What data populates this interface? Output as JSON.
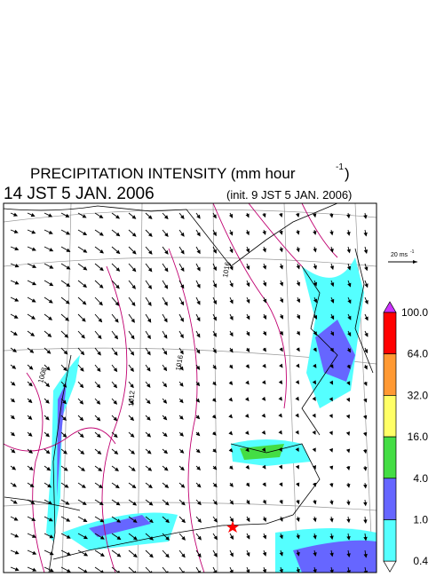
{
  "header": {
    "title": "PRECIPITATION INTENSITY (mm hour",
    "title_unit_exponent": "-1",
    "title_close": ")",
    "valid_time": "14 JST 5 JAN. 2006",
    "init_time": "(init. 9 JST 5 JAN. 2006)"
  },
  "wind_scale": {
    "label": "20 ms",
    "exponent": "-1"
  },
  "isobars": [
    {
      "label": "1008"
    },
    {
      "label": "1012"
    },
    {
      "label": "1016"
    },
    {
      "label": "1016"
    }
  ],
  "colorbar": {
    "labels": [
      "100.0",
      "64.0",
      "32.0",
      "16.0",
      "4.0",
      "1.0",
      "0.4"
    ],
    "colors": [
      "#ff0000",
      "#ff9933",
      "#ffff66",
      "#44dd44",
      "#6666ff",
      "#55ffff"
    ],
    "over_color": "#cc33ff",
    "under_color": "#ffffff"
  }
}
